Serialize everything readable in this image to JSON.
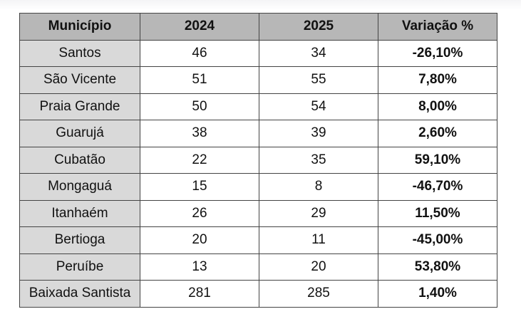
{
  "table": {
    "header": [
      "Município",
      "2024",
      "2025",
      "Variação %"
    ],
    "rows": [
      [
        "Santos",
        46,
        34,
        "-26,10%"
      ],
      [
        "São Vicente",
        51,
        55,
        "7,80%"
      ],
      [
        "Praia Grande",
        50,
        54,
        "8,00%"
      ],
      [
        "Guarujá",
        38,
        39,
        "2,60%"
      ],
      [
        "Cubatão",
        22,
        35,
        "59,10%"
      ],
      [
        "Mongaguá",
        15,
        8,
        "-46,70%"
      ],
      [
        "Itanhaém",
        26,
        29,
        "11,50%"
      ],
      [
        "Bertioga",
        20,
        11,
        "-45,00%"
      ],
      [
        "Peruíbe",
        13,
        20,
        "53,80%"
      ],
      [
        "Baixada Santista",
        281,
        285,
        "1,40%"
      ]
    ]
  }
}
